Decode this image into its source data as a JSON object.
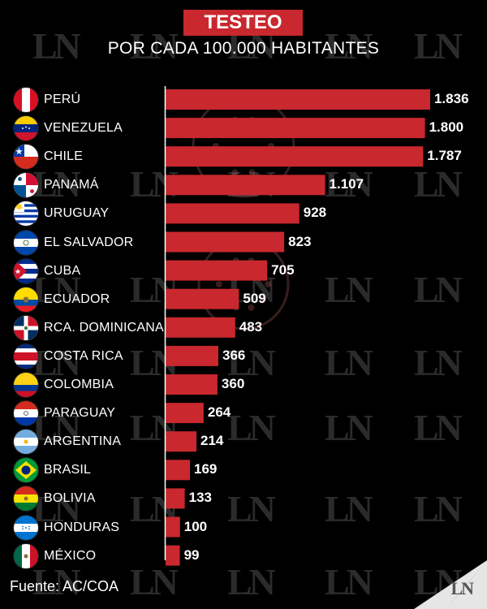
{
  "header": {
    "title": "TESTEO",
    "subtitle": "POR CADA 100.000 HABITANTES"
  },
  "source": "Fuente: AC/COA",
  "watermark_text": "LN",
  "logo_text": "LN",
  "colors": {
    "bar": "#c8282e",
    "background": "#000000",
    "title_bg": "#c8282e"
  },
  "chart_data": {
    "type": "bar",
    "orientation": "horizontal",
    "categories": [
      "PERÚ",
      "VENEZUELA",
      "CHILE",
      "PANAMÁ",
      "URUGUAY",
      "EL SALVADOR",
      "CUBA",
      "ECUADOR",
      "RCA. DOMINICANA",
      "COSTA RICA",
      "COLOMBIA",
      "PARAGUAY",
      "ARGENTINA",
      "BRASIL",
      "BOLIVIA",
      "HONDURAS",
      "MÉXICO"
    ],
    "values": [
      1836,
      1800,
      1787,
      1107,
      928,
      823,
      705,
      509,
      483,
      366,
      360,
      264,
      214,
      169,
      133,
      100,
      99
    ],
    "value_labels": [
      "1.836",
      "1.800",
      "1.787",
      "1.107",
      "928",
      "823",
      "705",
      "509",
      "483",
      "366",
      "360",
      "264",
      "214",
      "169",
      "133",
      "100",
      "99"
    ],
    "flags": [
      "peru-flag-icon",
      "venezuela-flag-icon",
      "chile-flag-icon",
      "panama-flag-icon",
      "uruguay-flag-icon",
      "el-salvador-flag-icon",
      "cuba-flag-icon",
      "ecuador-flag-icon",
      "dominican-republic-flag-icon",
      "costa-rica-flag-icon",
      "colombia-flag-icon",
      "paraguay-flag-icon",
      "argentina-flag-icon",
      "brazil-flag-icon",
      "bolivia-flag-icon",
      "honduras-flag-icon",
      "mexico-flag-icon"
    ],
    "xlim": [
      0,
      1836
    ],
    "title": "TESTEO",
    "subtitle": "POR CADA 100.000 HABITANTES"
  }
}
